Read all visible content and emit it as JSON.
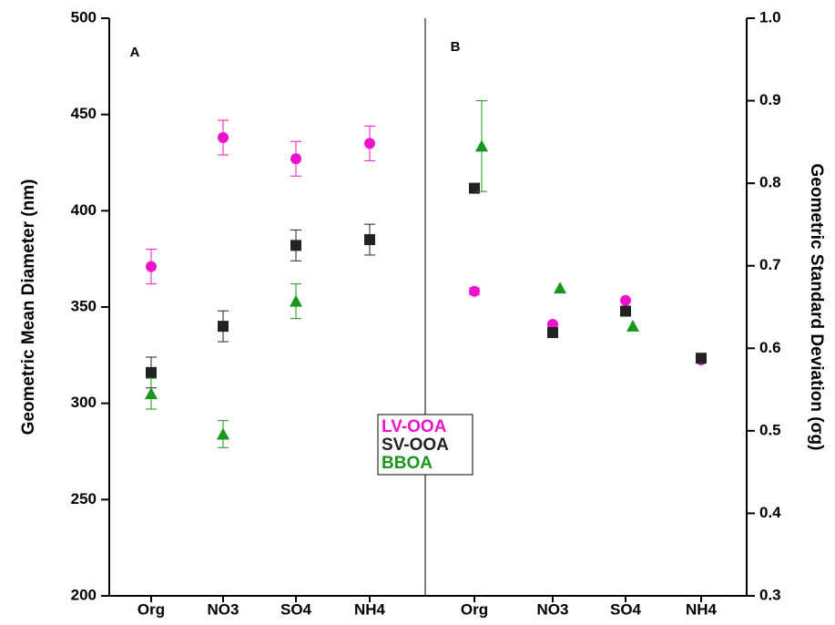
{
  "chart_data": [
    {
      "type": "scatter",
      "panel_label": "A",
      "y_label": "Geometric Mean Diameter (nm)",
      "categories": [
        "Org",
        "NO3",
        "SO4",
        "NH4"
      ],
      "ylim": [
        200,
        500
      ],
      "yticks": [
        200,
        250,
        300,
        350,
        400,
        450,
        500
      ],
      "series": [
        {
          "name": "LV-OOA",
          "color": "#ee11cc",
          "marker": "circle",
          "values": [
            371,
            438,
            427,
            435
          ],
          "errors": [
            9,
            9,
            9,
            9
          ]
        },
        {
          "name": "SV-OOA",
          "color": "#222222",
          "marker": "square",
          "values": [
            316,
            340,
            382,
            385
          ],
          "errors": [
            8,
            8,
            8,
            8
          ]
        },
        {
          "name": "BBOA",
          "color": "#1a961a",
          "marker": "triangle",
          "values": [
            305,
            284,
            353,
            null
          ],
          "errors": [
            8,
            7,
            9,
            null
          ]
        }
      ]
    },
    {
      "type": "scatter",
      "panel_label": "B",
      "y_label": "Geometric Standard Deviation (σg)",
      "categories": [
        "Org",
        "NO3",
        "SO4",
        "NH4"
      ],
      "ylim": [
        0.3,
        1.0
      ],
      "yticks": [
        {
          "value": 0.3,
          "label": "0.3"
        },
        {
          "value": 0.4,
          "label": "0.4"
        },
        {
          "value": 0.5,
          "label": "0.5"
        },
        {
          "value": 0.6,
          "label": "0.6"
        },
        {
          "value": 0.7,
          "label": "0.7"
        },
        {
          "value": 0.8,
          "label": "0.8"
        },
        {
          "value": 0.9,
          "label": "0.9"
        },
        {
          "value": 1.0,
          "label": "1.0"
        }
      ],
      "series": [
        {
          "color": "#ee11cc",
          "marker": "circle",
          "values": [
            0.669,
            0.629,
            0.658,
            0.586
          ],
          "errors": [
            0.004,
            null,
            null,
            null
          ]
        },
        {
          "color": "#222222",
          "marker": "square",
          "values": [
            0.794,
            0.619,
            0.645,
            0.588
          ],
          "errors": [
            0.005,
            null,
            null,
            null
          ]
        },
        {
          "color": "#1a961a",
          "marker": "triangle",
          "values": [
            0.845,
            0.673,
            0.627,
            null
          ],
          "errors": [
            0.055,
            null,
            null,
            null
          ]
        }
      ]
    }
  ]
}
